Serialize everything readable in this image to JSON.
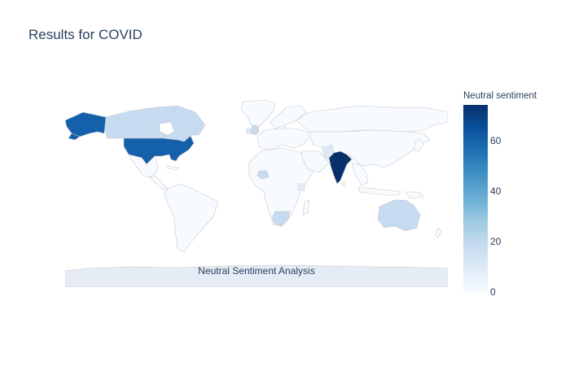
{
  "title": "Results for COVID",
  "annotation": "Neutral Sentiment Analysis",
  "colorbar": {
    "title": "Neutral sentiment",
    "range": [
      0,
      74
    ],
    "ticks": [
      0,
      20,
      40,
      60
    ],
    "colorscale": "Blues"
  },
  "map": {
    "projection": "equirectangular",
    "default_fill": "#f7fbff",
    "ocean_fill": "#ffffff",
    "antarctica_fill": "#e6ecf5",
    "border_color": "#c8c8c8"
  },
  "chart_data": {
    "type": "choropleth",
    "metric": "Neutral sentiment",
    "scale_range": [
      0,
      74
    ],
    "regions": [
      {
        "name": "India",
        "value": 74
      },
      {
        "name": "United States",
        "value": 63
      },
      {
        "name": "Canada",
        "value": 17
      },
      {
        "name": "United Kingdom",
        "value": 18
      },
      {
        "name": "Australia",
        "value": 15
      },
      {
        "name": "South Africa",
        "value": 17
      },
      {
        "name": "Nigeria",
        "value": 14
      },
      {
        "name": "Pakistan",
        "value": 7
      },
      {
        "name": "Kenya",
        "value": 4
      },
      {
        "name": "Ireland",
        "value": 8
      }
    ]
  }
}
